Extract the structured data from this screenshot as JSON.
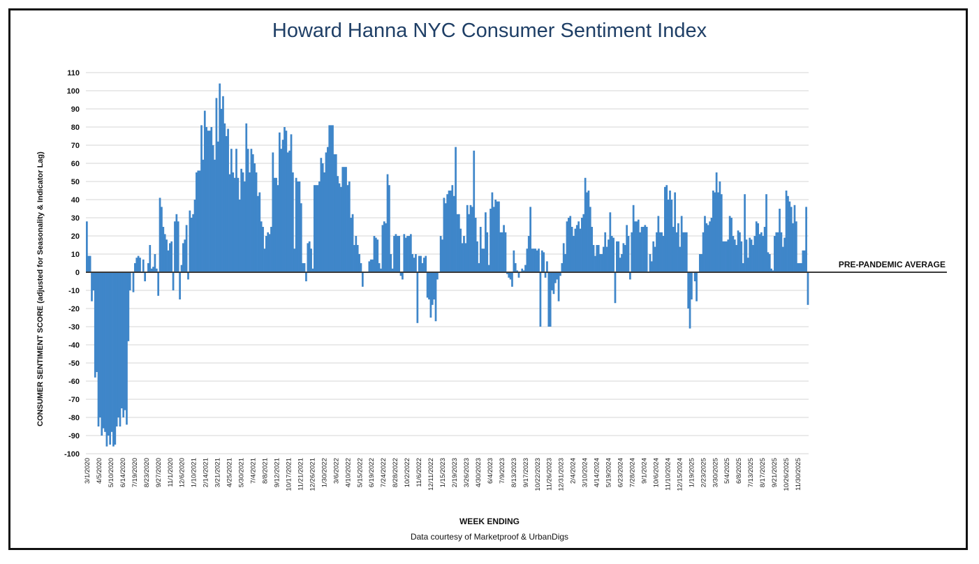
{
  "chart_data": {
    "type": "bar",
    "title": "Howard Hanna NYC Consumer Sentiment Index",
    "xlabel": "WEEK ENDING",
    "ylabel": "CONSUMER SENTIMENT SCORE (adjusted for Seasonality & Indicator Lag)",
    "credit": "Data courtesy of Marketproof & UrbanDigs",
    "reference_line": {
      "label": "PRE-PANDEMIC AVERAGE",
      "value": 0
    },
    "ylim": [
      -100,
      110
    ],
    "ytick_step": 10,
    "grid": true,
    "bar_color": "#3f86c9",
    "x_tick_labels": [
      "3/1/2020",
      "4/5/2020",
      "5/10/2020",
      "6/14/2020",
      "7/19/2020",
      "8/23/2020",
      "9/27/2020",
      "11/1/2020",
      "12/6/2020",
      "1/10/2021",
      "2/14/2021",
      "3/21/2021",
      "4/25/2021",
      "5/30/2021",
      "7/4/2021",
      "8/8/2021",
      "9/12/2021",
      "10/17/2021",
      "11/21/2021",
      "12/26/2021",
      "1/30/2022",
      "3/6/2022",
      "4/10/2022",
      "5/15/2022",
      "6/19/2022",
      "7/24/2022",
      "8/28/2022",
      "10/2/2022",
      "11/6/2022",
      "12/11/2022",
      "1/15/2023",
      "2/19/2023",
      "3/26/2023",
      "4/30/2023",
      "6/4/2023",
      "7/9/2023",
      "8/13/2023",
      "9/17/2023",
      "10/22/2023",
      "11/26/2023",
      "12/31/2023",
      "2/4/2024",
      "3/10/2024",
      "4/14/2024",
      "5/19/2024",
      "6/23/2024",
      "7/28/2024",
      "9/1/2024",
      "10/6/2024",
      "11/10/2024",
      "12/15/2024",
      "1/19/2025",
      "2/23/2025",
      "3/30/2025",
      "5/4/2025",
      "6/8/2025",
      "7/13/2025",
      "8/17/2025",
      "9/21/2025",
      "10/26/2025",
      "11/30/2025"
    ],
    "values": [
      28,
      9,
      9,
      -16,
      -10,
      -58,
      -55,
      -85,
      -80,
      -90,
      -86,
      -88,
      -96,
      -90,
      -95,
      -88,
      -96,
      -95,
      -85,
      -80,
      -85,
      -75,
      -80,
      -76,
      -84,
      -38,
      -10,
      0,
      -11,
      5,
      8,
      9,
      8,
      0,
      7,
      -5,
      0,
      5,
      15,
      2,
      3,
      10,
      2,
      -13,
      41,
      36,
      25,
      21,
      18,
      12,
      16,
      17,
      -10,
      28,
      32,
      28,
      -15,
      4,
      16,
      18,
      26,
      -4,
      34,
      30,
      32,
      40,
      55,
      56,
      56,
      81,
      62,
      89,
      80,
      78,
      78,
      80,
      70,
      62,
      96,
      72,
      104,
      90,
      97,
      82,
      75,
      79,
      54,
      68,
      55,
      52,
      68,
      52,
      40,
      57,
      55,
      50,
      82,
      68,
      55,
      68,
      65,
      60,
      55,
      42,
      44,
      28,
      25,
      13,
      20,
      22,
      21,
      25,
      66,
      52,
      52,
      48,
      77,
      68,
      73,
      80,
      78,
      66,
      67,
      76,
      55,
      13,
      52,
      50,
      50,
      38,
      5,
      5,
      -5,
      16,
      17,
      13,
      2,
      48,
      48,
      48,
      50,
      63,
      60,
      55,
      66,
      69,
      81,
      81,
      81,
      65,
      65,
      53,
      49,
      47,
      58,
      58,
      58,
      48,
      50,
      30,
      32,
      15,
      20,
      15,
      10,
      5,
      -8,
      0,
      0,
      0,
      6,
      7,
      7,
      20,
      19,
      18,
      5,
      2,
      26,
      28,
      27,
      54,
      48,
      10,
      2,
      20,
      21,
      20,
      20,
      -2,
      -4,
      21,
      19,
      20,
      20,
      21,
      10,
      8,
      10,
      -28,
      9,
      9,
      5,
      8,
      9,
      -14,
      -15,
      -25,
      -18,
      -15,
      -27,
      -4,
      0,
      20,
      18,
      41,
      38,
      43,
      45,
      45,
      48,
      42,
      69,
      32,
      32,
      24,
      16,
      20,
      16,
      37,
      32,
      37,
      36,
      67,
      30,
      17,
      5,
      25,
      13,
      13,
      33,
      22,
      4,
      35,
      44,
      36,
      40,
      39,
      39,
      22,
      22,
      26,
      22,
      -1,
      -3,
      -4,
      -8,
      12,
      5,
      1,
      -3,
      0,
      2,
      1,
      4,
      13,
      20,
      36,
      13,
      13,
      13,
      12,
      13,
      -30,
      12,
      11,
      -3,
      6,
      -30,
      -30,
      -10,
      -12,
      -6,
      -4,
      -16,
      -2,
      5,
      16,
      10,
      28,
      30,
      31,
      25,
      20,
      24,
      26,
      28,
      24,
      30,
      32,
      52,
      44,
      45,
      36,
      25,
      15,
      9,
      15,
      15,
      10,
      10,
      14,
      22,
      14,
      18,
      33,
      20,
      19,
      -17,
      17,
      17,
      8,
      10,
      16,
      15,
      26,
      20,
      -4,
      22,
      37,
      28,
      28,
      29,
      22,
      25,
      25,
      26,
      25,
      0,
      10,
      6,
      17,
      14,
      22,
      31,
      22,
      22,
      20,
      47,
      48,
      40,
      45,
      40,
      25,
      44,
      22,
      27,
      14,
      31,
      22,
      22,
      22,
      -20,
      -31,
      -15,
      0,
      -5,
      -16,
      0,
      10,
      10,
      22,
      31,
      27,
      26,
      28,
      30,
      45,
      44,
      55,
      44,
      50,
      43,
      17,
      17,
      17,
      18,
      31,
      30,
      20,
      18,
      15,
      23,
      22,
      17,
      5,
      43,
      18,
      8,
      19,
      18,
      15,
      20,
      28,
      27,
      21,
      22,
      20,
      25,
      43,
      11,
      10,
      2,
      1,
      20,
      22,
      22,
      35,
      22,
      14,
      19,
      45,
      42,
      39,
      36,
      27,
      37,
      28,
      5,
      5,
      5,
      12,
      12,
      36,
      -18
    ]
  }
}
